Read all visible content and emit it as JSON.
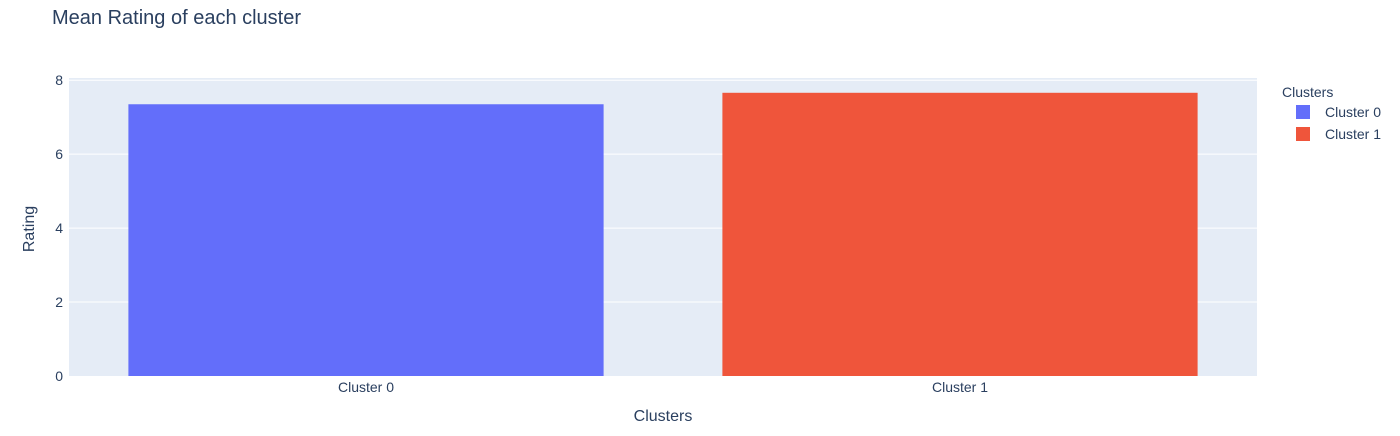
{
  "chart_data": {
    "type": "bar",
    "title": "Mean Rating of each cluster",
    "xlabel": "Clusters",
    "ylabel": "Rating",
    "categories": [
      "Cluster 0",
      "Cluster 1"
    ],
    "series": [
      {
        "name": "Cluster 0",
        "category": "Cluster 0",
        "value": 7.35,
        "color": "#636efa"
      },
      {
        "name": "Cluster 1",
        "category": "Cluster 1",
        "value": 7.66,
        "color": "#ef553b"
      }
    ],
    "ylim": [
      0,
      8.06
    ],
    "yticks": [
      0,
      2,
      4,
      6,
      8
    ],
    "grid": true,
    "legend": {
      "title": "Clusters",
      "placement": "right"
    },
    "colors": {
      "plot_bg": "#e5ecf6",
      "grid": "#ffffff",
      "text": "#2a3f5f"
    }
  }
}
